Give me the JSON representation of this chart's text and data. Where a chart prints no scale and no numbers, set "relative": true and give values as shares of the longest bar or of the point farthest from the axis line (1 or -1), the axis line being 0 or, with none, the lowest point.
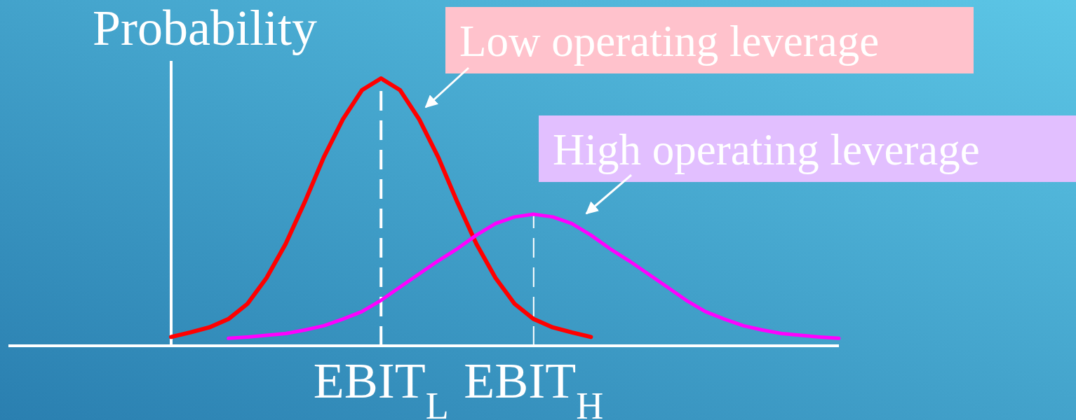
{
  "chart_data": {
    "type": "line",
    "relative": true,
    "ylabel": "Probability",
    "categories": [
      null,
      null,
      null,
      null,
      null,
      null,
      null,
      null,
      null,
      null,
      null,
      "EBIT$_{L}$",
      null,
      null,
      null,
      null,
      null,
      null,
      null,
      "EBIT$_{H}$",
      null,
      null,
      null,
      null,
      null,
      null,
      null,
      null,
      null,
      null,
      null,
      null,
      null,
      null,
      null,
      null
    ],
    "series": [
      {
        "color": "#ff0000",
        "values": [
          0.033,
          0.05,
          0.069,
          0.1,
          0.157,
          0.254,
          0.381,
          0.537,
          0.705,
          0.847,
          0.956,
          1,
          0.956,
          0.847,
          0.705,
          0.537,
          0.381,
          0.254,
          0.157,
          0.1,
          0.069,
          0.05,
          0.033,
          null,
          null,
          null,
          null,
          null,
          null,
          null,
          null,
          null,
          null,
          null,
          null,
          null
        ]
      },
      {
        "color": "#ff00ff",
        "values": [
          null,
          null,
          null,
          0.028,
          0.033,
          0.039,
          0.046,
          0.059,
          0.075,
          0.1,
          0.128,
          0.17,
          0.22,
          0.269,
          0.318,
          0.363,
          0.414,
          0.457,
          0.482,
          0.492,
          0.482,
          0.457,
          0.414,
          0.363,
          0.318,
          0.269,
          0.22,
          0.17,
          0.128,
          0.1,
          0.075,
          0.059,
          0.046,
          0.039,
          0.033,
          0.028
        ]
      }
    ],
    "ref_lines": [
      {
        "axis": "x",
        "value": "EBIT$_{L}$",
        "color": "#ffffff",
        "line_style": "dashed"
      },
      {
        "axis": "x",
        "value": "EBIT$_{H}$",
        "color": "#ffffff",
        "line_style": "dashed"
      }
    ],
    "annotations": [
      "Low operating leverage",
      "High operating leverage"
    ]
  }
}
